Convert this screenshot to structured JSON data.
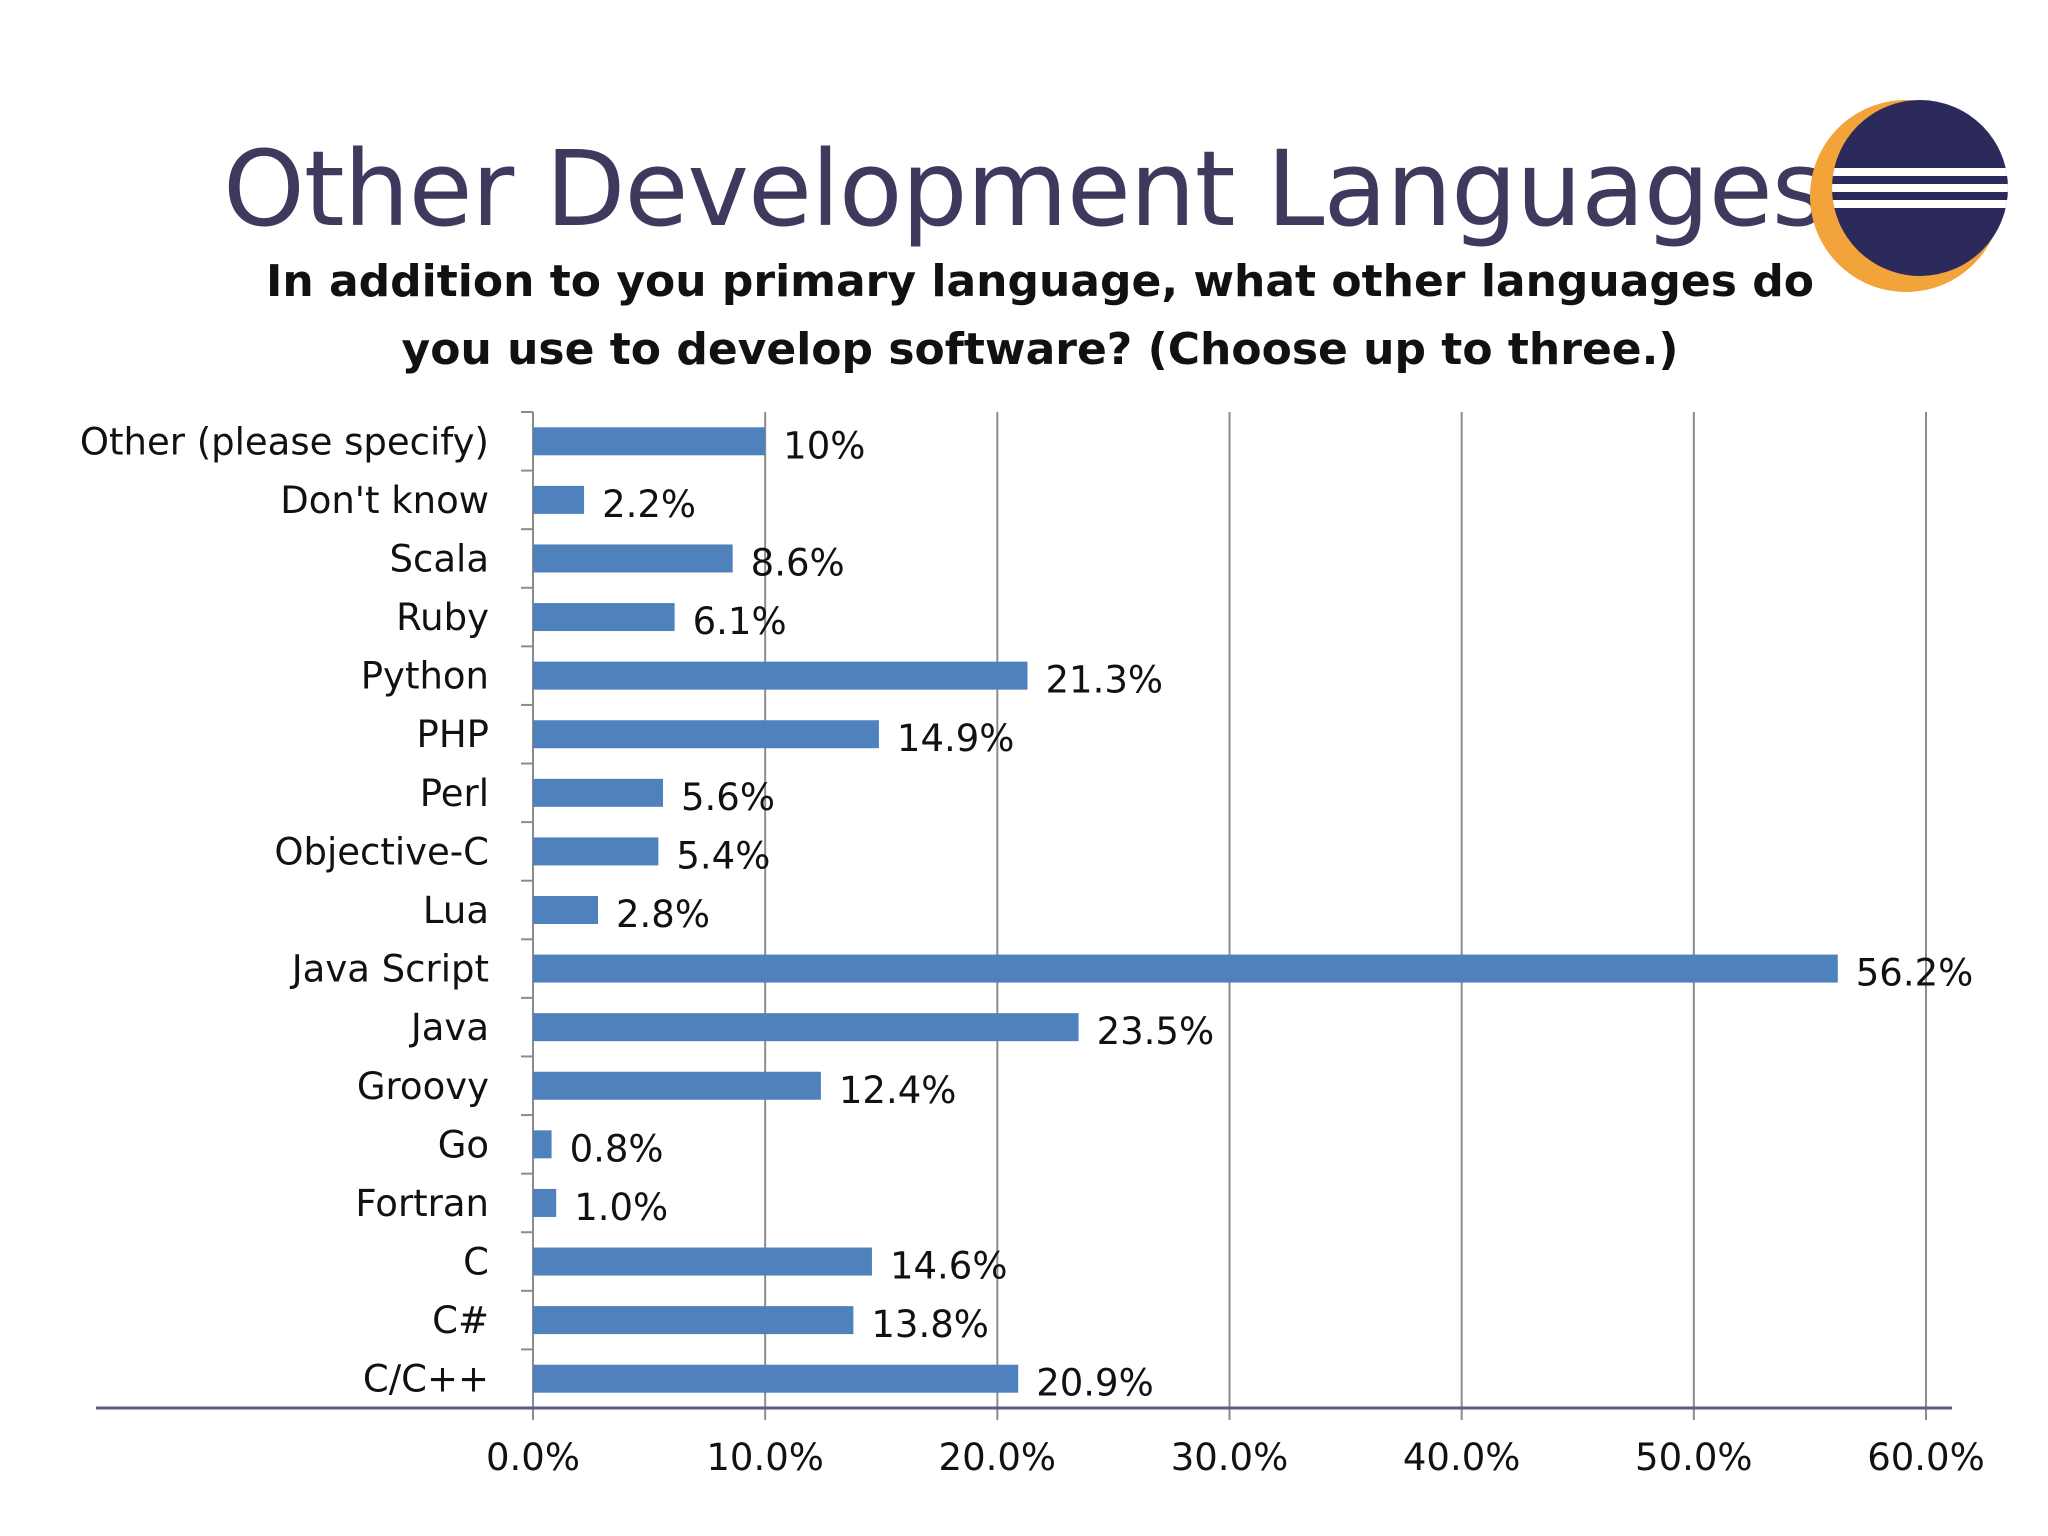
{
  "slide": {
    "title": "Other Development Languages",
    "question": "In addition to you primary language, what other languages do you use to develop software? (Choose up to three.)"
  },
  "logo": {
    "icon": "eclipse-logo-icon",
    "colors": {
      "ring": "#f2a33a",
      "disc": "#2c2a5a",
      "stripe": "#ffffff"
    }
  },
  "colors": {
    "bar": "#4f81bd",
    "grid": "#8c8c8c",
    "baseline": "#5c5a8a",
    "title": "#3e3a5e"
  },
  "chart_data": {
    "type": "bar",
    "orientation": "horizontal",
    "categories": [
      "Other (please specify)",
      "Don't know",
      "Scala",
      "Ruby",
      "Python",
      "PHP",
      "Perl",
      "Objective-C",
      "Lua",
      "Java Script",
      "Java",
      "Groovy",
      "Go",
      "Fortran",
      "C",
      "C#",
      "C/C++"
    ],
    "values": [
      10,
      2.2,
      8.6,
      6.1,
      21.3,
      14.9,
      5.6,
      5.4,
      2.8,
      56.2,
      23.5,
      12.4,
      0.8,
      1.0,
      14.6,
      13.8,
      20.9
    ],
    "value_labels": [
      "10%",
      "2.2%",
      "8.6%",
      "6.1%",
      "21.3%",
      "14.9%",
      "5.6%",
      "5.4%",
      "2.8%",
      "56.2%",
      "23.5%",
      "12.4%",
      "0.8%",
      "1.0%",
      "14.6%",
      "13.8%",
      "20.9%"
    ],
    "xticks": [
      "0.0%",
      "10.0%",
      "20.0%",
      "30.0%",
      "40.0%",
      "50.0%",
      "60.0%"
    ],
    "xlim": [
      0,
      60
    ],
    "grid": true,
    "legend": "none"
  }
}
